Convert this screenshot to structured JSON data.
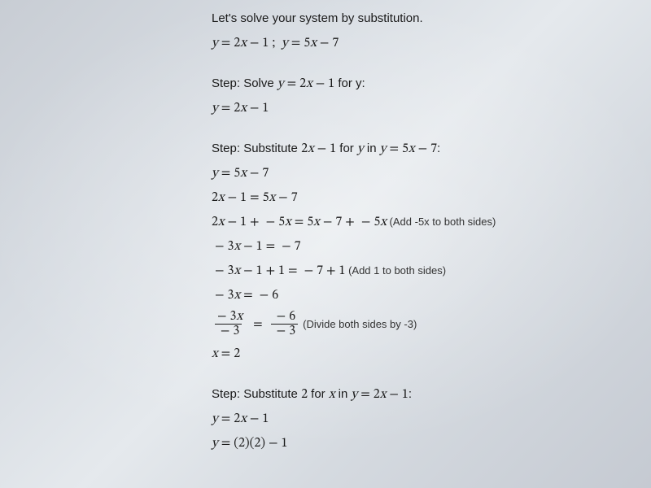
{
  "intro": "Let's solve your system by substitution.",
  "system": "y = 2x − 1    y = 5x − 7",
  "step1_label": "Step: Solve ",
  "step1_eq": "y = 2x − 1",
  "step1_for": " for y:",
  "step1_result": "y = 2x − 1",
  "step2_label": "Step: Substitute ",
  "step2_expr": "2x − 1",
  "step2_mid": " for ",
  "step2_var": "y",
  "step2_in": " in ",
  "step2_target": "y = 5x − 7",
  "lines": {
    "a": "y = 5x − 7",
    "b": "2x − 1 = 5x − 7",
    "c": "2x − 1 + − 5x = 5x − 7 + − 5x",
    "c_note": " (Add -5x to both sides)",
    "d": "− 3x − 1 = −7",
    "e": "− 3x − 1 + 1 = −7 + 1",
    "e_note": " (Add 1 to both sides)",
    "f": "− 3x = −6",
    "frac_top_l": "− 3x",
    "frac_bot_l": "−3",
    "frac_top_r": "−6",
    "frac_bot_r": "−3",
    "frac_note": " (Divide both sides by -3)",
    "g": "x = 2"
  },
  "step3_label": "Step: Substitute ",
  "step3_val": "2",
  "step3_mid": " for ",
  "step3_var": "x",
  "step3_in": " in ",
  "step3_target": "y = 2x − 1",
  "step3_a": "y = 2x − 1",
  "step3_b": "y = (2)(2) − 1",
  "semicolon": ";",
  "colon": ":",
  "eq": "="
}
